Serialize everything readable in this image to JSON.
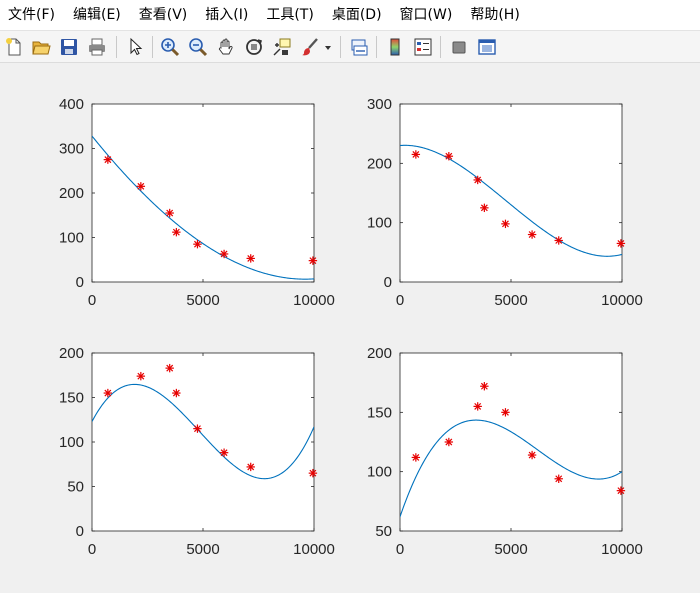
{
  "menu": {
    "items": [
      "文件(F)",
      "编辑(E)",
      "查看(V)",
      "插入(I)",
      "工具(T)",
      "桌面(D)",
      "窗口(W)",
      "帮助(H)"
    ]
  },
  "toolbar": {
    "icons": [
      "new-figure-icon",
      "open-file-icon",
      "save-icon",
      "print-icon",
      "pointer-icon",
      "zoom-in-icon",
      "zoom-out-icon",
      "pan-icon",
      "rotate-3d-icon",
      "data-cursor-icon",
      "brush-icon",
      "brush-dropdown-icon",
      "link-plot-icon",
      "colorbar-icon",
      "legend-icon",
      "hide-plot-tools-icon",
      "show-plot-tools-icon"
    ]
  },
  "colors": {
    "fit_line": "#0072bd",
    "markers": "#e60000",
    "axes_bg": "#ffffff",
    "figure_bg": "#f0f0f0"
  },
  "chart_data": [
    {
      "type": "scatter",
      "x": [
        714,
        2200,
        3500,
        3800,
        4750,
        5950,
        7150,
        9950
      ],
      "y": [
        275,
        215,
        155,
        112,
        85,
        63,
        53,
        48
      ],
      "fit": {
        "type": "line",
        "coeffs": [
          328,
          -0.0618,
          2.41e-06,
          5.6e-11
        ]
      },
      "xlim": [
        0,
        10000
      ],
      "ylim": [
        0,
        400
      ],
      "xticks": [
        0,
        5000,
        10000
      ],
      "yticks": [
        0,
        100,
        200,
        300,
        400
      ],
      "xticklabels": [
        "0",
        "5000",
        "10000"
      ],
      "yticklabels": [
        "0",
        "100",
        "200",
        "300",
        "400"
      ]
    },
    {
      "type": "scatter",
      "x": [
        714,
        2200,
        3500,
        3800,
        4750,
        5950,
        7150,
        9950
      ],
      "y": [
        215,
        212,
        172,
        125,
        98,
        80,
        70,
        65
      ],
      "fit": {
        "type": "line",
        "coeffs": [
          230,
          0.00315,
          -7.1e-06,
          4.95e-10
        ]
      },
      "xlim": [
        0,
        10000
      ],
      "ylim": [
        0,
        300
      ],
      "xticks": [
        0,
        5000,
        10000
      ],
      "yticks": [
        0,
        100,
        200,
        300
      ],
      "xticklabels": [
        "0",
        "5000",
        "10000"
      ],
      "yticklabels": [
        "0",
        "100",
        "200",
        "300"
      ]
    },
    {
      "type": "scatter",
      "x": [
        714,
        2200,
        3500,
        3800,
        4750,
        5950,
        7150,
        9950
      ],
      "y": [
        155,
        174,
        183,
        155,
        115,
        88,
        72,
        65
      ],
      "fit": {
        "type": "line",
        "coeffs": [
          123,
          0.0474,
          -1.54e-05,
          1.06e-09
        ]
      },
      "xlim": [
        0,
        10000
      ],
      "ylim": [
        0,
        200
      ],
      "xticks": [
        0,
        5000,
        10000
      ],
      "yticks": [
        0,
        50,
        100,
        150,
        200
      ],
      "xticklabels": [
        "0",
        "5000",
        "10000"
      ],
      "yticklabels": [
        "0",
        "50",
        "100",
        "150",
        "200"
      ]
    },
    {
      "type": "scatter",
      "x": [
        714,
        2200,
        3500,
        3800,
        4750,
        5950,
        7150,
        9950
      ],
      "y": [
        112,
        125,
        155,
        172,
        150,
        114,
        94,
        84
      ],
      "fit": {
        "type": "line",
        "coeffs": [
          62,
          0.0545,
          -1.1e-05,
          5.93e-10
        ]
      },
      "xlim": [
        0,
        10000
      ],
      "ylim": [
        50,
        200
      ],
      "xticks": [
        0,
        5000,
        10000
      ],
      "yticks": [
        50,
        100,
        150,
        200
      ],
      "xticklabels": [
        "0",
        "5000",
        "10000"
      ],
      "yticklabels": [
        "50",
        "100",
        "150",
        "200"
      ]
    }
  ]
}
